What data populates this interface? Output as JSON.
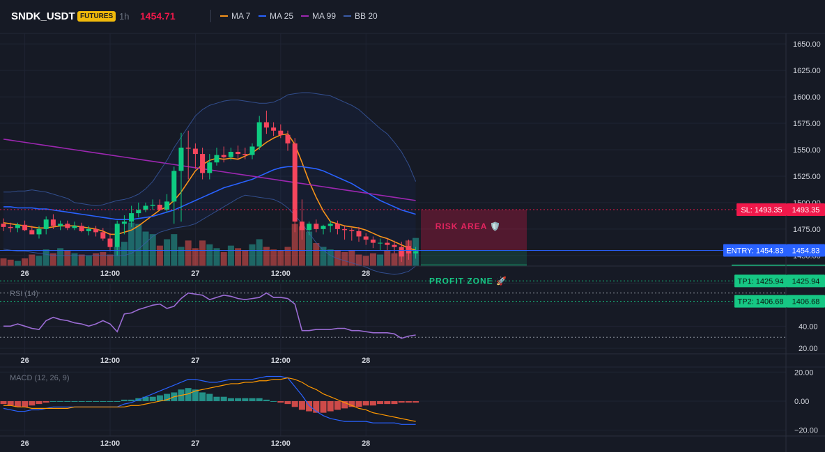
{
  "header": {
    "symbol": "SNDK_USDT",
    "badge": "FUTURES",
    "timeframe": "1h",
    "price": "1454.71",
    "legend": [
      {
        "label": "MA 7",
        "color": "#f7931a"
      },
      {
        "label": "MA 25",
        "color": "#2962ff"
      },
      {
        "label": "MA 99",
        "color": "#9c27b0"
      },
      {
        "label": "BB 20",
        "color": "#3a5ba8"
      }
    ]
  },
  "colors": {
    "up": "#0ecb81",
    "down": "#f6465d",
    "up_vol": "#26a69a",
    "down_vol": "#ef5350",
    "risk": "#f0184a",
    "profit": "#16c784",
    "entry": "#2962ff"
  },
  "chart_data": [
    {
      "type": "candlestick",
      "name": "price",
      "x_labels": [
        "26",
        "12:00",
        "27",
        "12:00",
        "28"
      ],
      "x_label_index": [
        3,
        15,
        27,
        39,
        51
      ],
      "ylim": [
        1440,
        1660
      ],
      "y_ticks": [
        "1650.00",
        "1625.00",
        "1600.00",
        "1575.00",
        "1550.00",
        "1525.00",
        "1500.00",
        "1475.00",
        "1450.00"
      ],
      "y_tick_values": [
        1650,
        1625,
        1600,
        1575,
        1550,
        1525,
        1500,
        1475,
        1450
      ],
      "open": [
        1480,
        1477,
        1476,
        1479,
        1474,
        1470,
        1475,
        1484,
        1478,
        1480,
        1476,
        1478,
        1473,
        1475,
        1472,
        1466,
        1458,
        1480,
        1482,
        1490,
        1493,
        1497,
        1498,
        1493,
        1501,
        1530,
        1552,
        1551,
        1546,
        1528,
        1538,
        1545,
        1543,
        1548,
        1546,
        1545,
        1553,
        1576,
        1571,
        1568,
        1564,
        1556,
        1482,
        1474,
        1480,
        1475,
        1478,
        1480,
        1475,
        1474,
        1473,
        1468,
        1465,
        1462,
        1462,
        1460,
        1458,
        1459,
        1452
      ],
      "high": [
        1485,
        1481,
        1481,
        1483,
        1478,
        1478,
        1487,
        1489,
        1483,
        1483,
        1482,
        1481,
        1478,
        1478,
        1476,
        1471,
        1483,
        1488,
        1497,
        1500,
        1500,
        1503,
        1503,
        1508,
        1534,
        1566,
        1568,
        1556,
        1552,
        1546,
        1552,
        1553,
        1552,
        1554,
        1552,
        1556,
        1582,
        1587,
        1576,
        1574,
        1568,
        1561,
        1503,
        1482,
        1484,
        1479,
        1483,
        1483,
        1478,
        1476,
        1477,
        1471,
        1468,
        1466,
        1466,
        1464,
        1463,
        1465,
        1458
      ],
      "low": [
        1473,
        1472,
        1472,
        1473,
        1470,
        1466,
        1470,
        1475,
        1474,
        1474,
        1474,
        1472,
        1469,
        1468,
        1464,
        1454,
        1450,
        1470,
        1477,
        1486,
        1491,
        1493,
        1493,
        1491,
        1480,
        1482,
        1522,
        1532,
        1522,
        1522,
        1535,
        1538,
        1540,
        1541,
        1541,
        1541,
        1550,
        1565,
        1563,
        1561,
        1549,
        1472,
        1465,
        1469,
        1472,
        1470,
        1472,
        1470,
        1465,
        1464,
        1463,
        1460,
        1457,
        1455,
        1455,
        1452,
        1444,
        1446,
        1447
      ],
      "close": [
        1477,
        1476,
        1479,
        1474,
        1470,
        1475,
        1484,
        1478,
        1480,
        1476,
        1478,
        1473,
        1475,
        1472,
        1466,
        1458,
        1480,
        1482,
        1490,
        1493,
        1497,
        1498,
        1493,
        1501,
        1530,
        1552,
        1551,
        1546,
        1528,
        1538,
        1545,
        1543,
        1548,
        1546,
        1545,
        1553,
        1576,
        1571,
        1568,
        1564,
        1556,
        1482,
        1474,
        1480,
        1475,
        1478,
        1480,
        1475,
        1474,
        1473,
        1468,
        1465,
        1462,
        1462,
        1460,
        1458,
        1449,
        1452,
        1454
      ]
    },
    {
      "type": "line",
      "name": "overlays",
      "series": [
        {
          "name": "MA 7",
          "color": "#f7931a",
          "values": [
            1481,
            1480,
            1479,
            1478,
            1477,
            1476,
            1476,
            1477,
            1478,
            1478,
            1478,
            1477,
            1476,
            1475,
            1473,
            1470,
            1470,
            1472,
            1474,
            1478,
            1483,
            1488,
            1493,
            1496,
            1502,
            1510,
            1520,
            1530,
            1536,
            1540,
            1542,
            1541,
            1542,
            1541,
            1544,
            1547,
            1552,
            1557,
            1561,
            1564,
            1565,
            1555,
            1538,
            1520,
            1505,
            1492,
            1482,
            1480,
            1478,
            1477,
            1476,
            1474,
            1471,
            1468,
            1466,
            1463,
            1460,
            1457,
            1455
          ]
        },
        {
          "name": "MA 25",
          "color": "#2962ff",
          "values": [
            1496,
            1496,
            1495,
            1495,
            1495,
            1494,
            1494,
            1493,
            1492,
            1491,
            1490,
            1489,
            1488,
            1487,
            1486,
            1485,
            1484,
            1484,
            1484,
            1485,
            1486,
            1487,
            1489,
            1491,
            1493,
            1496,
            1499,
            1502,
            1505,
            1508,
            1511,
            1514,
            1516,
            1518,
            1520,
            1522,
            1525,
            1528,
            1531,
            1533,
            1534,
            1534,
            1534,
            1533,
            1532,
            1530,
            1527,
            1524,
            1521,
            1518,
            1514,
            1510,
            1506,
            1502,
            1499,
            1496,
            1493,
            1491,
            1489
          ]
        },
        {
          "name": "MA 99",
          "color": "#9c27b0",
          "values": [
            1560,
            1559,
            1558,
            1557,
            1556,
            1555,
            1554,
            1553,
            1552,
            1551,
            1550,
            1549,
            1548,
            1547,
            1546,
            1545,
            1544,
            1543,
            1542,
            1541,
            1540,
            1539,
            1538,
            1537,
            1536,
            1535,
            1534,
            1533,
            1532,
            1531,
            1530,
            1529,
            1528,
            1527,
            1526,
            1525,
            1524,
            1523,
            1522,
            1521,
            1520,
            1519,
            1518,
            1517,
            1516,
            1515,
            1514,
            1513,
            1512,
            1511,
            1510,
            1509,
            1508,
            1507,
            1506,
            1505,
            1504,
            1503,
            1502
          ]
        },
        {
          "name": "BB upper",
          "color": "#3a5ba8",
          "values": [
            1510,
            1510,
            1511,
            1511,
            1512,
            1511,
            1510,
            1508,
            1506,
            1504,
            1500,
            1499,
            1498,
            1497,
            1498,
            1500,
            1502,
            1503,
            1505,
            1508,
            1513,
            1520,
            1530,
            1540,
            1552,
            1562,
            1572,
            1582,
            1588,
            1592,
            1594,
            1596,
            1597,
            1597,
            1596,
            1595,
            1594,
            1594,
            1595,
            1598,
            1602,
            1603,
            1604,
            1604,
            1603,
            1602,
            1601,
            1598,
            1595,
            1592,
            1588,
            1582,
            1576,
            1570,
            1565,
            1557,
            1548,
            1536,
            1520
          ]
        },
        {
          "name": "BB lower",
          "color": "#3a5ba8",
          "values": [
            1456,
            1455,
            1454,
            1454,
            1453,
            1452,
            1451,
            1450,
            1450,
            1450,
            1450,
            1450,
            1450,
            1450,
            1450,
            1450,
            1450,
            1450,
            1452,
            1456,
            1462,
            1468,
            1472,
            1474,
            1476,
            1477,
            1478,
            1480,
            1484,
            1488,
            1492,
            1496,
            1500,
            1504,
            1507,
            1506,
            1505,
            1504,
            1503,
            1500,
            1495,
            1488,
            1480,
            1471,
            1462,
            1455,
            1450,
            1447,
            1445,
            1443,
            1441,
            1439,
            1436,
            1434,
            1433,
            1432,
            1433,
            1435,
            1440
          ]
        }
      ]
    },
    {
      "type": "bar",
      "name": "volume",
      "values": [
        6,
        5,
        4,
        6,
        9,
        8,
        13,
        10,
        14,
        12,
        10,
        9,
        8,
        10,
        11,
        9,
        15,
        19,
        34,
        33,
        27,
        25,
        16,
        21,
        25,
        15,
        20,
        14,
        20,
        17,
        14,
        11,
        16,
        14,
        12,
        17,
        21,
        15,
        13,
        12,
        15,
        33,
        31,
        27,
        18,
        15,
        13,
        12,
        11,
        12,
        9,
        8,
        10,
        9,
        12,
        10,
        12,
        20,
        22
      ]
    },
    {
      "type": "line",
      "name": "RSI (14)",
      "title": "RSI (14)",
      "color": "#9b6cd4",
      "ylim": [
        15,
        78
      ],
      "y_ticks": [
        "60.00",
        "40.00",
        "20.00"
      ],
      "y_tick_values": [
        60,
        40,
        20
      ],
      "levels": [
        70,
        30
      ],
      "values": [
        40,
        40,
        42,
        40,
        38,
        37,
        45,
        48,
        46,
        45,
        43,
        42,
        40,
        42,
        45,
        42,
        35,
        51,
        52,
        55,
        57,
        59,
        60,
        56,
        58,
        65,
        70,
        69,
        68,
        64,
        66,
        68,
        67,
        65,
        64,
        65,
        66,
        70,
        66,
        66,
        65,
        60,
        36,
        36,
        37,
        37,
        37,
        38,
        38,
        36,
        36,
        35,
        34,
        34,
        34,
        33,
        29,
        31,
        32
      ]
    },
    {
      "type": "bar",
      "name": "MACD (12, 26, 9)",
      "title": "MACD (12, 26, 9)",
      "ylim": [
        -24,
        23
      ],
      "y_ticks": [
        "20.00",
        "0.00",
        "−20.00"
      ],
      "y_tick_values": [
        20,
        0,
        -20
      ],
      "histogram": [
        -2,
        -3,
        -4,
        -4,
        -3,
        -2,
        -1,
        0,
        0,
        0,
        0,
        0,
        0,
        0,
        0,
        0,
        0,
        1,
        1,
        2,
        3,
        3,
        4,
        5,
        6,
        8,
        9,
        8,
        6,
        5,
        3,
        3,
        2,
        2,
        2,
        2,
        2,
        1,
        0,
        -1,
        -2,
        -4,
        -6,
        -7,
        -8,
        -8,
        -7,
        -6,
        -5,
        -4,
        -4,
        -3,
        -3,
        -2,
        -2,
        -2,
        -1,
        -1,
        -1
      ],
      "series": [
        {
          "name": "MACD",
          "color": "#2962ff",
          "values": [
            -5,
            -6,
            -7,
            -7,
            -6,
            -6,
            -5,
            -4,
            -4,
            -4,
            -4,
            -4,
            -4,
            -4,
            -4,
            -4,
            -4,
            -2,
            -1,
            1,
            3,
            5,
            7,
            9,
            11,
            13,
            15,
            15,
            14,
            13,
            13,
            14,
            15,
            15,
            15,
            15,
            16,
            17,
            17,
            17,
            16,
            10,
            4,
            -3,
            -7,
            -10,
            -12,
            -13,
            -14,
            -14,
            -14,
            -14,
            -15,
            -15,
            -15,
            -15,
            -16,
            -16,
            -16
          ]
        },
        {
          "name": "Signal",
          "color": "#ff9800",
          "values": [
            -3,
            -3,
            -4,
            -4,
            -5,
            -5,
            -5,
            -5,
            -5,
            -5,
            -4,
            -4,
            -4,
            -4,
            -4,
            -4,
            -4,
            -4,
            -3,
            -3,
            -2,
            -1,
            0,
            1,
            3,
            4,
            5,
            7,
            8,
            9,
            10,
            11,
            12,
            12,
            13,
            13,
            14,
            14,
            15,
            15,
            16,
            15,
            13,
            10,
            8,
            5,
            3,
            1,
            -1,
            -3,
            -5,
            -6,
            -8,
            -9,
            -10,
            -11,
            -12,
            -13,
            -14
          ]
        }
      ]
    }
  ],
  "trade": {
    "sl_value": 1493.35,
    "entry_value": 1454.83,
    "tp1_value": 1425.94,
    "tp2_value": 1406.68,
    "sl_label": "SL: 1493.35",
    "sl_axis": "1493.35",
    "entry_label": "ENTRY: 1454.83",
    "entry_axis": "1454.83",
    "tp1_label": "TP1: 1425.94",
    "tp1_axis": "1425.94",
    "tp2_label": "TP2: 1406.68",
    "tp2_axis": "1406.68",
    "risk_label": "RISK AREA 🛡️",
    "profit_label": "PROFIT ZONE 🚀"
  }
}
